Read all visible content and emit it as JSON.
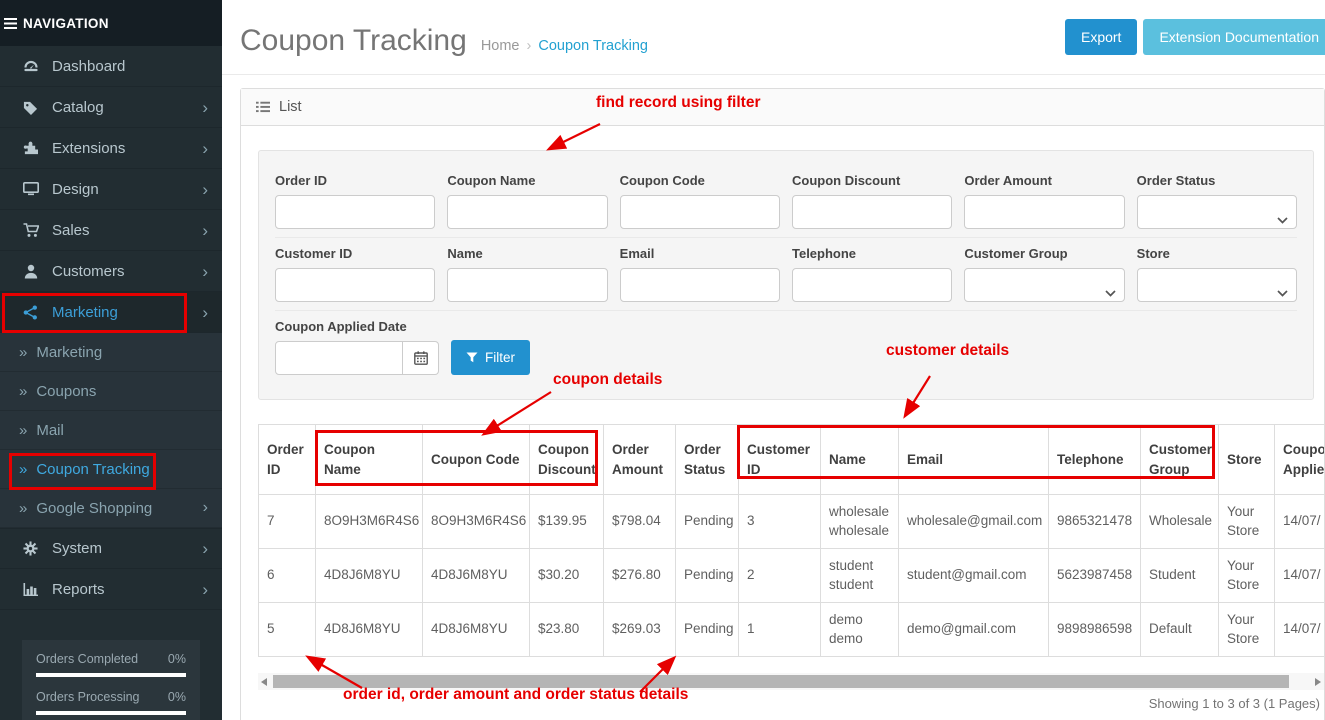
{
  "colors": {
    "primary_button": "#2291cf",
    "info_button": "#5bc0de",
    "annotation_red": "#e60000",
    "sidebar_bg": "#222d32",
    "sidebar_active_link": "#3fa9e0",
    "breadcrumb_link": "#23a1d1"
  },
  "icons": {
    "chevron_right": "›",
    "submenu_marker": "»",
    "breadcrumb_separator": "›"
  },
  "sidebar": {
    "header": "NAVIGATION",
    "items": [
      {
        "label": "Dashboard"
      },
      {
        "label": "Catalog"
      },
      {
        "label": "Extensions"
      },
      {
        "label": "Design"
      },
      {
        "label": "Sales"
      },
      {
        "label": "Customers"
      },
      {
        "label": "Marketing"
      }
    ],
    "submenu": [
      {
        "label": "Marketing"
      },
      {
        "label": "Coupons"
      },
      {
        "label": "Mail"
      },
      {
        "label": "Coupon Tracking"
      },
      {
        "label": "Google Shopping"
      }
    ],
    "items_bottom": [
      {
        "label": "System"
      },
      {
        "label": "Reports"
      }
    ],
    "stats": [
      {
        "label": "Orders Completed",
        "value": "0%"
      },
      {
        "label": "Orders Processing",
        "value": "0%"
      }
    ]
  },
  "header": {
    "title": "Coupon Tracking",
    "breadcrumb": [
      "Home",
      "Coupon Tracking"
    ],
    "export_label": "Export",
    "docs_label": "Extension Documentation"
  },
  "panel": {
    "heading": "List"
  },
  "filter": {
    "row1": [
      {
        "label": "Order ID",
        "type": "text"
      },
      {
        "label": "Coupon Name",
        "type": "text"
      },
      {
        "label": "Coupon Code",
        "type": "text"
      },
      {
        "label": "Coupon Discount",
        "type": "text"
      },
      {
        "label": "Order Amount",
        "type": "text"
      },
      {
        "label": "Order Status",
        "type": "select"
      }
    ],
    "row2": [
      {
        "label": "Customer ID",
        "type": "text"
      },
      {
        "label": "Name",
        "type": "text"
      },
      {
        "label": "Email",
        "type": "text"
      },
      {
        "label": "Telephone",
        "type": "text"
      },
      {
        "label": "Customer Group",
        "type": "select"
      },
      {
        "label": "Store",
        "type": "select"
      }
    ],
    "date_label": "Coupon Applied Date",
    "filter_button": "Filter"
  },
  "annotations": {
    "find_filter": "find record using filter",
    "coupon": "coupon details",
    "customer": "customer details",
    "order": "order id, order amount and order status details"
  },
  "table": {
    "columns": [
      "Order ID",
      "Coupon Name",
      "Coupon Code",
      "Coupon Discount",
      "Order Amount",
      "Order Status",
      "Customer ID",
      "Name",
      "Email",
      "Telephone",
      "Customer Group",
      "Store",
      "Coupon Applied Date"
    ],
    "rows": [
      [
        "7",
        "8O9H3M6R4S6",
        "8O9H3M6R4S6",
        "$139.95",
        "$798.04",
        "Pending",
        "3",
        "wholesale wholesale",
        "wholesale@gmail.com",
        "9865321478",
        "Wholesale",
        "Your Store",
        "14/07/"
      ],
      [
        "6",
        "4D8J6M8YU",
        "4D8J6M8YU",
        "$30.20",
        "$276.80",
        "Pending",
        "2",
        "student student",
        "student@gmail.com",
        "5623987458",
        "Student",
        "Your Store",
        "14/07/"
      ],
      [
        "5",
        "4D8J6M8YU",
        "4D8J6M8YU",
        "$23.80",
        "$269.03",
        "Pending",
        "1",
        "demo demo",
        "demo@gmail.com",
        "9898986598",
        "Default",
        "Your Store",
        "14/07/"
      ]
    ],
    "showing": "Showing 1 to 3 of 3 (1 Pages)"
  }
}
